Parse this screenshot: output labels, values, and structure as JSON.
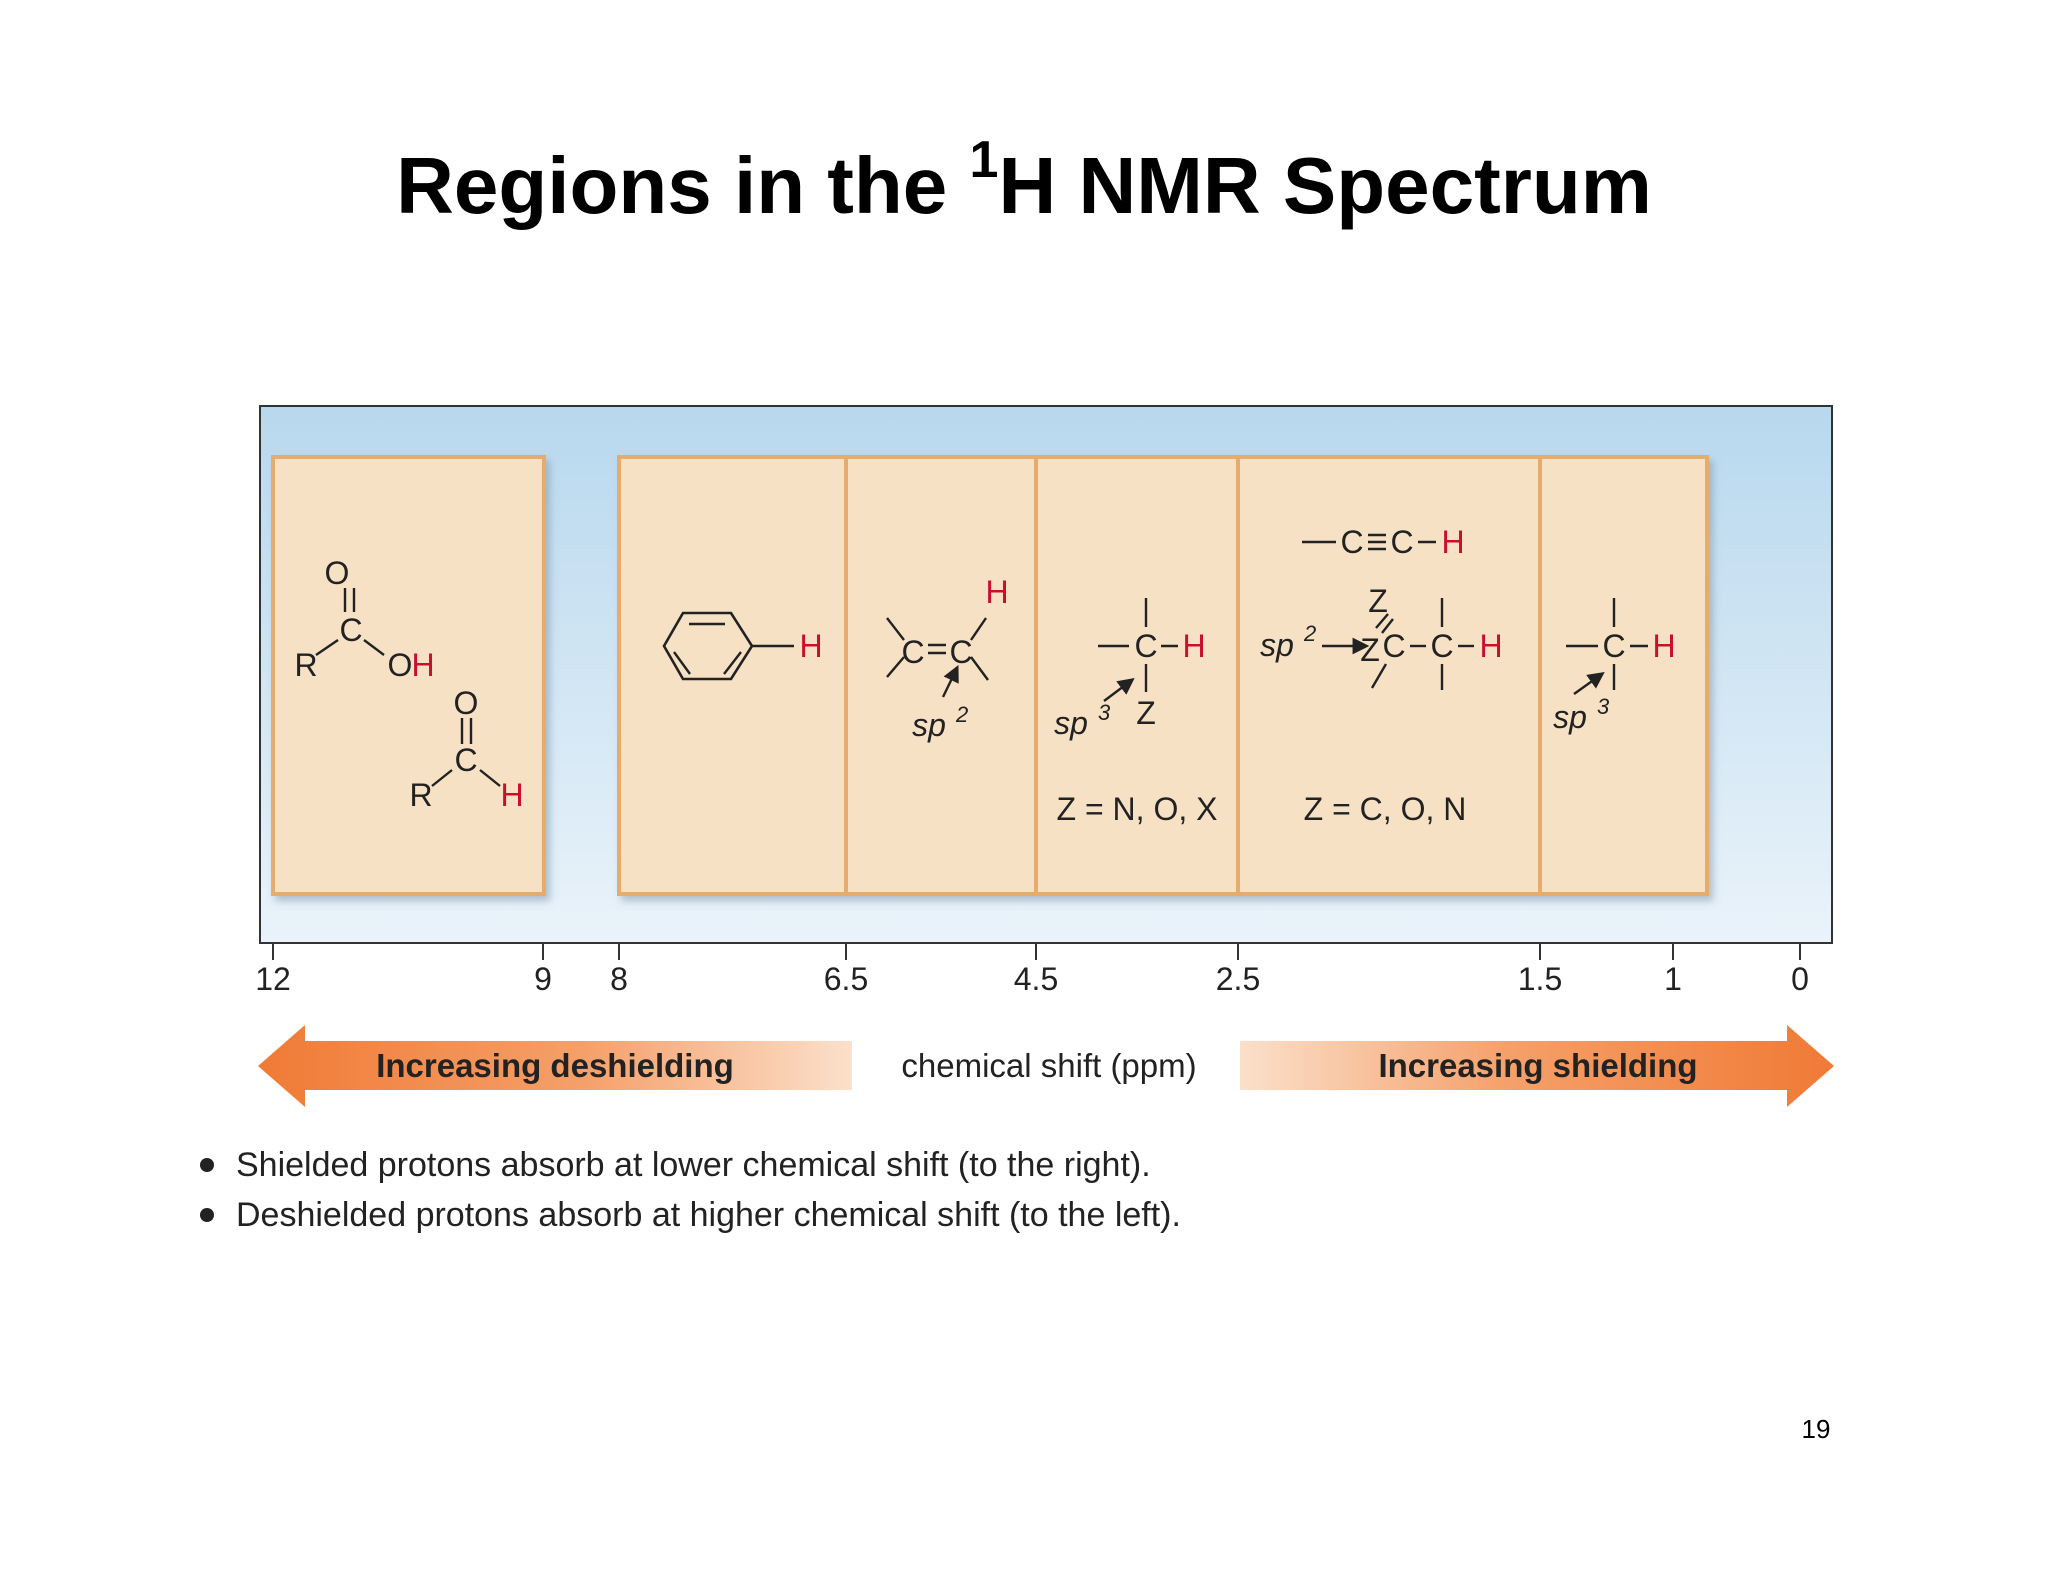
{
  "slide": {
    "title_pre": "Regions in the ",
    "title_sup": "1",
    "title_post": "H NMR Spectrum",
    "page_number": "19"
  },
  "colors": {
    "panel_bg_top": "#b9d9ef",
    "panel_bg_bottom": "#e8f2fa",
    "box_fill": "#f6e1c5",
    "box_border": "#e5ac6c",
    "hydrogen_red": "#c8102e",
    "arrow_orange": "#f28a4a",
    "axis": "#333333"
  },
  "regions": [
    {
      "from": 12,
      "to": 9,
      "label": "carboxylic acid and aldehyde H"
    },
    {
      "from": 8,
      "to": 6.5,
      "label": "aromatic H"
    },
    {
      "from": 6.5,
      "to": 4.5,
      "label": "alkene H"
    },
    {
      "from": 4.5,
      "to": 2.5,
      "label": "sp3 C-H with Z",
      "note": "Z = N, O, X"
    },
    {
      "from": 2.5,
      "to": 1.5,
      "label": "alkyne and allylic/alpha H",
      "note": "Z = C, O, N"
    },
    {
      "from": 1.5,
      "to": 1,
      "label": "sp3 C-H"
    }
  ],
  "axis": {
    "ticks": [
      "12",
      "9",
      "8",
      "6.5",
      "4.5",
      "2.5",
      "1.5",
      "1",
      "0"
    ],
    "label": "chemical shift (ppm)",
    "left_arrow": "Increasing deshielding",
    "right_arrow": "Increasing shielding"
  },
  "bullets": [
    "Shielded protons absorb at lower chemical shift (to the right).",
    "Deshielded protons absorb at higher chemical shift (to the left)."
  ]
}
